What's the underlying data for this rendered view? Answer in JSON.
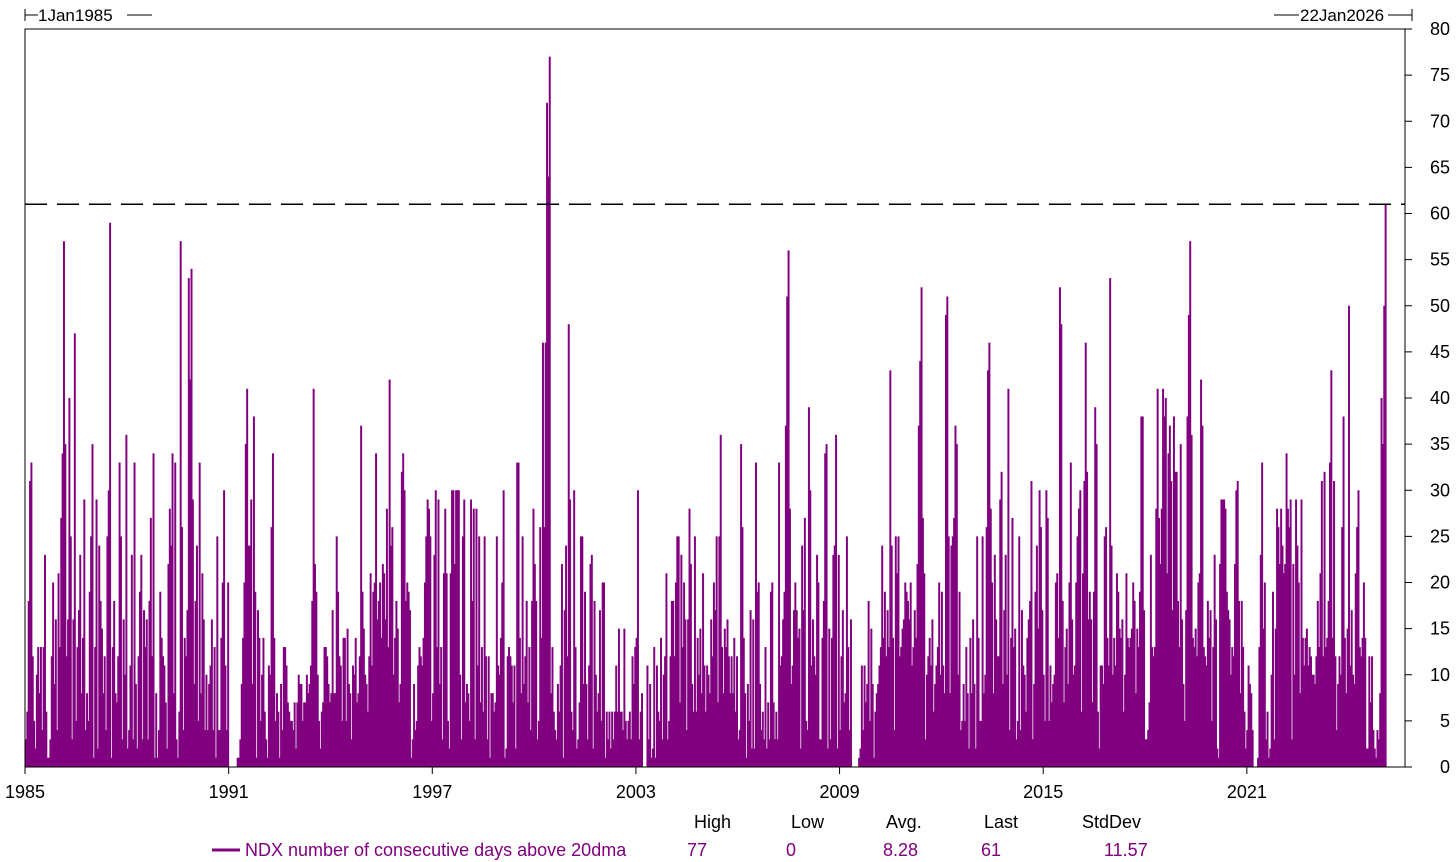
{
  "colors": {
    "series": "#800080",
    "axis": "#000000",
    "reference_line": "#000000",
    "background": "#ffffff"
  },
  "range": {
    "start_label": "1Jan1985",
    "end_label": "22Jan2026"
  },
  "stats": {
    "headers": [
      "High",
      "Low",
      "Avg.",
      "Last",
      "StdDev"
    ],
    "values": [
      "77",
      "0",
      "8.28",
      "61",
      "11.57"
    ]
  },
  "chart_data": {
    "type": "bar",
    "x_start": 1985.0,
    "x_end": 2025.06,
    "xlim": [
      1985.0,
      2025.66
    ],
    "ylim": [
      0,
      80
    ],
    "y_axis_position": "right",
    "x_ticks": [
      "1985",
      "1991",
      "1997",
      "2003",
      "2009",
      "2015",
      "2021"
    ],
    "y_ticks": [
      "0",
      "5",
      "10",
      "15",
      "20",
      "25",
      "30",
      "35",
      "40",
      "45",
      "50",
      "55",
      "60",
      "65",
      "70",
      "75",
      "80"
    ],
    "reference_line": 61,
    "grid": false,
    "legend_placement": "bottom-left",
    "series": [
      {
        "name": "NDX number of consecutive days above 20dma",
        "values": [
          3,
          6,
          18,
          31,
          33,
          12,
          5,
          2,
          10,
          13,
          8,
          13,
          4,
          13,
          23,
          6,
          1,
          1,
          3,
          12,
          20,
          9,
          16,
          4,
          21,
          13,
          27,
          34,
          57,
          35,
          12,
          16,
          40,
          25,
          3,
          16,
          47,
          5,
          13,
          17,
          23,
          8,
          14,
          29,
          4,
          8,
          5,
          19,
          25,
          35,
          1,
          13,
          29,
          2,
          24,
          18,
          15,
          8,
          12,
          4,
          25,
          30,
          59,
          1,
          13,
          18,
          8,
          7,
          12,
          33,
          25,
          3,
          16,
          10,
          36,
          2,
          4,
          11,
          23,
          3,
          33,
          9,
          2,
          12,
          19,
          23,
          3,
          17,
          13,
          16,
          3,
          18,
          27,
          12,
          34,
          1,
          8,
          1,
          4,
          19,
          14,
          12,
          11,
          7,
          2,
          22,
          28,
          24,
          34,
          8,
          33,
          3,
          1,
          6,
          57,
          26,
          4,
          14,
          12,
          17,
          53,
          42,
          54,
          29,
          9,
          18,
          24,
          5,
          33,
          8,
          21,
          16,
          4,
          10,
          4,
          9,
          11,
          16,
          4,
          13,
          1,
          25,
          4,
          4,
          14,
          20,
          30,
          11,
          4,
          20,
          0,
          0,
          0,
          0,
          0,
          0,
          1,
          1,
          3,
          9,
          14,
          20,
          35,
          41,
          24,
          24,
          29,
          9,
          38,
          19,
          1,
          17,
          14,
          5,
          10,
          14,
          6,
          3,
          1,
          11,
          10,
          26,
          34,
          14,
          5,
          8,
          6,
          1,
          9,
          4,
          13,
          13,
          11,
          7,
          6,
          5,
          5,
          4,
          7,
          2,
          7,
          10,
          9,
          9,
          5,
          7,
          7,
          10,
          8,
          9,
          11,
          18,
          41,
          22,
          19,
          10,
          5,
          2,
          6,
          7,
          13,
          13,
          12,
          9,
          7,
          8,
          17,
          8,
          8,
          25,
          19,
          12,
          11,
          5,
          14,
          14,
          5,
          15,
          9,
          8,
          3,
          11,
          10,
          14,
          7,
          8,
          12,
          37,
          19,
          15,
          10,
          9,
          6,
          12,
          21,
          11,
          19,
          20,
          34,
          16,
          18,
          20,
          14,
          22,
          21,
          16,
          28,
          13,
          42,
          24,
          26,
          10,
          14,
          18,
          15,
          7,
          9,
          32,
          34,
          30,
          18,
          20,
          19,
          17,
          1,
          3,
          9,
          4,
          5,
          11,
          13,
          12,
          11,
          14,
          20,
          25,
          29,
          28,
          25,
          5,
          8,
          23,
          30,
          13,
          29,
          9,
          13,
          3,
          21,
          28,
          21,
          5,
          2,
          21,
          30,
          30,
          22,
          30,
          30,
          30,
          10,
          3,
          25,
          29,
          7,
          9,
          8,
          5,
          29,
          18,
          28,
          3,
          28,
          11,
          25,
          7,
          13,
          6,
          25,
          12,
          3,
          12,
          1,
          8,
          8,
          6,
          7,
          25,
          11,
          10,
          14,
          20,
          30,
          1,
          2,
          12,
          13,
          12,
          11,
          7,
          11,
          2,
          33,
          33,
          14,
          8,
          25,
          9,
          12,
          18,
          7,
          13,
          4,
          18,
          28,
          22,
          18,
          3,
          5,
          26,
          14,
          46,
          26,
          46,
          72,
          64,
          77,
          8,
          13,
          6,
          4,
          3,
          9,
          6,
          11,
          22,
          1,
          17,
          24,
          12,
          48,
          29,
          6,
          4,
          30,
          13,
          2,
          3,
          7,
          25,
          25,
          9,
          19,
          9,
          3,
          11,
          22,
          23,
          2,
          18,
          10,
          6,
          8,
          17,
          5,
          20,
          20,
          1,
          6,
          3,
          6,
          2,
          6,
          3,
          6,
          11,
          6,
          15,
          6,
          6,
          4,
          15,
          5,
          3,
          5,
          6,
          3,
          12,
          9,
          13,
          14,
          30,
          3,
          6,
          8,
          0,
          0,
          0,
          11,
          3,
          9,
          1,
          2,
          13,
          1,
          11,
          6,
          5,
          14,
          3,
          10,
          12,
          21,
          3,
          5,
          12,
          18,
          18,
          12,
          20,
          25,
          25,
          7,
          23,
          13,
          20,
          16,
          4,
          16,
          28,
          22,
          9,
          6,
          25,
          6,
          14,
          10,
          15,
          8,
          21,
          11,
          6,
          11,
          10,
          8,
          16,
          12,
          20,
          17,
          25,
          7,
          25,
          36,
          13,
          8,
          15,
          13,
          16,
          12,
          8,
          12,
          8,
          14,
          6,
          12,
          3,
          4,
          35,
          26,
          14,
          8,
          1,
          9,
          5,
          17,
          2,
          16,
          2,
          33,
          19,
          20,
          9,
          4,
          6,
          3,
          13,
          2,
          7,
          3,
          19,
          20,
          7,
          3,
          6,
          3,
          33,
          11,
          12,
          16,
          19,
          37,
          51,
          56,
          28,
          9,
          11,
          17,
          20,
          17,
          14,
          15,
          2,
          24,
          17,
          27,
          5,
          4,
          39,
          30,
          11,
          16,
          12,
          10,
          23,
          20,
          3,
          3,
          14,
          18,
          34,
          35,
          2,
          15,
          3,
          14,
          23,
          24,
          36,
          2,
          23,
          4,
          12,
          17,
          7,
          8,
          25,
          13,
          4,
          16,
          0,
          0,
          0,
          0,
          0,
          1,
          2,
          11,
          4,
          11,
          7,
          9,
          18,
          5,
          15,
          9,
          1,
          6,
          8,
          9,
          11,
          13,
          24,
          14,
          19,
          12,
          17,
          13,
          43,
          24,
          14,
          4,
          25,
          21,
          25,
          12,
          13,
          15,
          16,
          20,
          19,
          18,
          16,
          20,
          11,
          13,
          17,
          14,
          22,
          37,
          44,
          52,
          27,
          21,
          3,
          10,
          12,
          14,
          11,
          16,
          6,
          9,
          11,
          13,
          20,
          10,
          19,
          11,
          8,
          49,
          51,
          25,
          8,
          24,
          25,
          27,
          37,
          35,
          10,
          19,
          4,
          5,
          9,
          5,
          13,
          8,
          2,
          14,
          8,
          16,
          9,
          2,
          25,
          14,
          5,
          5,
          25,
          8,
          10,
          26,
          43,
          46,
          28,
          20,
          8,
          23,
          16,
          12,
          12,
          29,
          32,
          9,
          17,
          23,
          10,
          41,
          4,
          14,
          27,
          13,
          15,
          3,
          5,
          25,
          4,
          17,
          11,
          10,
          6,
          14,
          16,
          18,
          31,
          3,
          9,
          19,
          24,
          15,
          30,
          26,
          17,
          10,
          5,
          30,
          27,
          5,
          11,
          7,
          9,
          10,
          20,
          21,
          14,
          52,
          48,
          18,
          7,
          13,
          15,
          9,
          20,
          33,
          16,
          10,
          11,
          20,
          25,
          28,
          30,
          6,
          21,
          31,
          46,
          32,
          16,
          19,
          16,
          7,
          19,
          39,
          35,
          6,
          2,
          11,
          11,
          9,
          25,
          26,
          14,
          11,
          53,
          24,
          10,
          14,
          11,
          21,
          19,
          15,
          14,
          16,
          6,
          10,
          21,
          14,
          13,
          14,
          15,
          20,
          18,
          8,
          15,
          13,
          19,
          38,
          38,
          17,
          3,
          3,
          4,
          7,
          23,
          13,
          12,
          13,
          28,
          41,
          27,
          22,
          28,
          41,
          38,
          40,
          21,
          34,
          37,
          31,
          17,
          38,
          32,
          32,
          18,
          13,
          35,
          16,
          9,
          5,
          17,
          38,
          49,
          57,
          36,
          14,
          13,
          15,
          12,
          20,
          21,
          42,
          37,
          13,
          12,
          11,
          18,
          14,
          17,
          5,
          13,
          23,
          16,
          2,
          1,
          22,
          29,
          29,
          29,
          28,
          19,
          17,
          16,
          10,
          13,
          12,
          22,
          30,
          31,
          18,
          8,
          18,
          13,
          6,
          2,
          4,
          11,
          9,
          8,
          4,
          0,
          0,
          0,
          1,
          13,
          23,
          33,
          15,
          20,
          3,
          6,
          1,
          2,
          10,
          19,
          3,
          15,
          28,
          26,
          22,
          28,
          24,
          21,
          22,
          34,
          28,
          26,
          29,
          3,
          22,
          10,
          29,
          24,
          20,
          8,
          29,
          14,
          11,
          14,
          15,
          11,
          13,
          12,
          10,
          10,
          9,
          12,
          18,
          13,
          21,
          31,
          12,
          32,
          13,
          14,
          18,
          33,
          43,
          14,
          31,
          12,
          4,
          9,
          12,
          10,
          26,
          38,
          14,
          8,
          15,
          50,
          11,
          17,
          10,
          9,
          21,
          26,
          30,
          13,
          12,
          14,
          20,
          14,
          2,
          2,
          12,
          7,
          12,
          4,
          2,
          1,
          4,
          3,
          8,
          40,
          35,
          50,
          61
        ]
      }
    ]
  }
}
